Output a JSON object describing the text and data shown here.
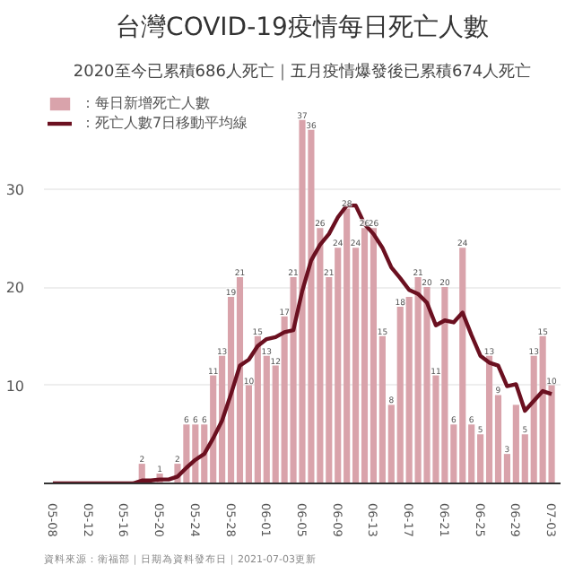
{
  "chart_data": {
    "type": "bar",
    "title": "台灣COVID-19疫情每日死亡人數",
    "subtitle": "2020至今已累積686人死亡｜五月疫情爆發後已累積674人死亡",
    "categories": [
      "05-08",
      null,
      null,
      null,
      "05-12",
      null,
      null,
      null,
      "05-16",
      null,
      null,
      null,
      "05-20",
      null,
      null,
      null,
      "05-24",
      null,
      null,
      null,
      "05-28",
      null,
      null,
      null,
      "06-01",
      null,
      null,
      null,
      "06-05",
      null,
      null,
      null,
      "06-09",
      null,
      null,
      null,
      "06-13",
      null,
      null,
      null,
      "06-17",
      null,
      null,
      null,
      "06-21",
      null,
      null,
      null,
      "06-25",
      null,
      null,
      null,
      "06-29",
      null,
      null,
      null,
      "07-03"
    ],
    "series": [
      {
        "name": "：每日新增死亡人數",
        "color": "#d9a3ab",
        "values": [
          0,
          0,
          0,
          0,
          0,
          0,
          0,
          0,
          0,
          0,
          2,
          0,
          1,
          0,
          2,
          6,
          6,
          6,
          11,
          13,
          19,
          21,
          10,
          15,
          13,
          12,
          17,
          21,
          37,
          36,
          26,
          21,
          24,
          28,
          24,
          26,
          26,
          15,
          8,
          18,
          19,
          21,
          20,
          11,
          20,
          6,
          24,
          6,
          5,
          13,
          9,
          3,
          8,
          5,
          13,
          15,
          10
        ],
        "value_labels": [
          null,
          null,
          null,
          null,
          null,
          null,
          null,
          null,
          null,
          null,
          "2",
          null,
          "1",
          null,
          "2",
          "6",
          "6",
          "6",
          "11",
          "13",
          "19",
          "21",
          "10",
          "15",
          "13",
          "12",
          "17",
          "21",
          "37",
          "36",
          "26",
          "21",
          "24",
          "28",
          "24",
          "26",
          "26",
          "15",
          "8",
          "18",
          null,
          "21",
          "20",
          "11",
          "20",
          "6",
          "24",
          "6",
          "5",
          "13",
          "9",
          "3",
          null,
          "5",
          "13",
          "15",
          "10"
        ]
      },
      {
        "name": "：死亡人數7日移動平均線",
        "type": "line",
        "color": "#6b1020",
        "values": [
          0,
          0,
          0,
          0,
          0,
          0,
          0,
          0,
          0,
          0,
          0.3,
          0.3,
          0.4,
          0.4,
          0.7,
          1.6,
          2.4,
          3,
          4.6,
          6.4,
          9.1,
          12,
          12.6,
          14,
          14.7,
          14.9,
          15.4,
          15.6,
          19.6,
          22.7,
          24.3,
          25.4,
          27.1,
          28.3,
          28.3,
          26.4,
          25.4,
          24,
          22,
          20.9,
          19.7,
          19.3,
          18.4,
          16.1,
          16.6,
          16.4,
          17.4,
          15.1,
          13,
          12.3,
          12,
          9.9,
          10.1,
          7.4,
          8.4,
          9.4,
          9.1
        ]
      }
    ],
    "ylim": [
      0,
      40
    ],
    "yticks": [
      {
        "value": 0,
        "label": null
      },
      10,
      20,
      30
    ],
    "grid": "y",
    "legend": "top left",
    "annotations": [
      "資料來源：衛福部｜日期為資料發布日｜2021-07-03更新"
    ]
  }
}
